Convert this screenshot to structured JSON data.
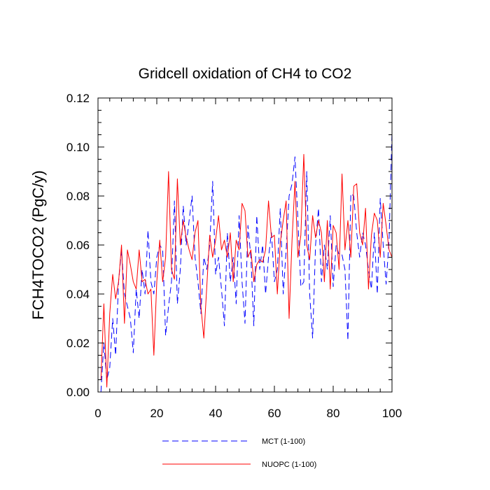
{
  "chart_data": {
    "type": "line",
    "title": "Gridcell oxidation of CH4 to CO2",
    "xlabel": "",
    "ylabel": "FCH4TOCO2  (PgC/y)",
    "xlim": [
      0,
      100
    ],
    "ylim": [
      0,
      0.12
    ],
    "x_ticks": [
      "0",
      "20",
      "40",
      "60",
      "80",
      "100"
    ],
    "y_ticks": [
      "0.00",
      "0.02",
      "0.04",
      "0.06",
      "0.08",
      "0.10",
      "0.12"
    ],
    "legend_position": "bottom",
    "series": [
      {
        "name": "MCT (1-100)",
        "color": "#0000ff",
        "style": "dashed",
        "x": [
          1,
          2,
          3,
          4,
          5,
          6,
          7,
          8,
          9,
          10,
          11,
          12,
          13,
          14,
          15,
          16,
          17,
          18,
          19,
          20,
          21,
          22,
          23,
          24,
          25,
          26,
          27,
          28,
          29,
          30,
          31,
          32,
          33,
          34,
          35,
          36,
          37,
          38,
          39,
          40,
          41,
          42,
          43,
          44,
          45,
          46,
          47,
          48,
          49,
          50,
          51,
          52,
          53,
          54,
          55,
          56,
          57,
          58,
          59,
          60,
          61,
          62,
          63,
          64,
          65,
          66,
          67,
          68,
          69,
          70,
          71,
          72,
          73,
          74,
          75,
          76,
          77,
          78,
          79,
          80,
          81,
          82,
          83,
          84,
          85,
          86,
          87,
          88,
          89,
          90,
          91,
          92,
          93,
          94,
          95,
          96,
          97,
          98,
          99,
          100
        ],
        "values": [
          0.0,
          0.02,
          0.005,
          0.01,
          0.03,
          0.015,
          0.045,
          0.058,
          0.04,
          0.035,
          0.03,
          0.016,
          0.042,
          0.03,
          0.05,
          0.04,
          0.066,
          0.045,
          0.04,
          0.055,
          0.06,
          0.058,
          0.023,
          0.035,
          0.045,
          0.078,
          0.036,
          0.05,
          0.076,
          0.06,
          0.07,
          0.08,
          0.055,
          0.045,
          0.032,
          0.055,
          0.05,
          0.06,
          0.086,
          0.048,
          0.055,
          0.042,
          0.027,
          0.065,
          0.045,
          0.055,
          0.036,
          0.072,
          0.045,
          0.028,
          0.068,
          0.055,
          0.027,
          0.072,
          0.05,
          0.06,
          0.04,
          0.055,
          0.065,
          0.045,
          0.05,
          0.075,
          0.04,
          0.058,
          0.08,
          0.085,
          0.096,
          0.07,
          0.043,
          0.045,
          0.09,
          0.04,
          0.022,
          0.06,
          0.075,
          0.045,
          0.06,
          0.05,
          0.072,
          0.043,
          0.06,
          0.056,
          0.056,
          0.05,
          0.021,
          0.081,
          0.08,
          0.065,
          0.055,
          0.065,
          0.06,
          0.05,
          0.042,
          0.065,
          0.04,
          0.079,
          0.06,
          0.044,
          0.062,
          0.106
        ]
      },
      {
        "name": "NUOPC (1-100)",
        "color": "#ff0000",
        "style": "solid",
        "x": [
          1,
          2,
          3,
          4,
          5,
          6,
          7,
          8,
          9,
          10,
          11,
          12,
          13,
          14,
          15,
          16,
          17,
          18,
          19,
          20,
          21,
          22,
          23,
          24,
          25,
          26,
          27,
          28,
          29,
          30,
          31,
          32,
          33,
          34,
          35,
          36,
          37,
          38,
          39,
          40,
          41,
          42,
          43,
          44,
          45,
          46,
          47,
          48,
          49,
          50,
          51,
          52,
          53,
          54,
          55,
          56,
          57,
          58,
          59,
          60,
          61,
          62,
          63,
          64,
          65,
          66,
          67,
          68,
          69,
          70,
          71,
          72,
          73,
          74,
          75,
          76,
          77,
          78,
          79,
          80,
          81,
          82,
          83,
          84,
          85,
          86,
          87,
          88,
          89,
          90,
          91,
          92,
          93,
          94,
          95,
          96,
          97,
          98,
          99,
          100
        ],
        "values": [
          0.005,
          0.036,
          0.002,
          0.032,
          0.048,
          0.038,
          0.045,
          0.06,
          0.028,
          0.058,
          0.052,
          0.045,
          0.042,
          0.058,
          0.045,
          0.046,
          0.04,
          0.042,
          0.015,
          0.045,
          0.062,
          0.045,
          0.055,
          0.09,
          0.05,
          0.046,
          0.087,
          0.06,
          0.07,
          0.063,
          0.058,
          0.054,
          0.065,
          0.07,
          0.035,
          0.022,
          0.043,
          0.064,
          0.055,
          0.062,
          0.072,
          0.058,
          0.062,
          0.055,
          0.065,
          0.045,
          0.062,
          0.058,
          0.077,
          0.074,
          0.055,
          0.058,
          0.045,
          0.052,
          0.054,
          0.053,
          0.058,
          0.078,
          0.063,
          0.064,
          0.04,
          0.061,
          0.07,
          0.078,
          0.03,
          0.062,
          0.086,
          0.055,
          0.064,
          0.097,
          0.06,
          0.054,
          0.072,
          0.063,
          0.07,
          0.065,
          0.045,
          0.07,
          0.042,
          0.068,
          0.065,
          0.05,
          0.089,
          0.058,
          0.07,
          0.055,
          0.084,
          0.085,
          0.065,
          0.06,
          0.075,
          0.042,
          0.064,
          0.073,
          0.07,
          0.055,
          0.077,
          0.068,
          0.058,
          0.055
        ]
      }
    ]
  }
}
